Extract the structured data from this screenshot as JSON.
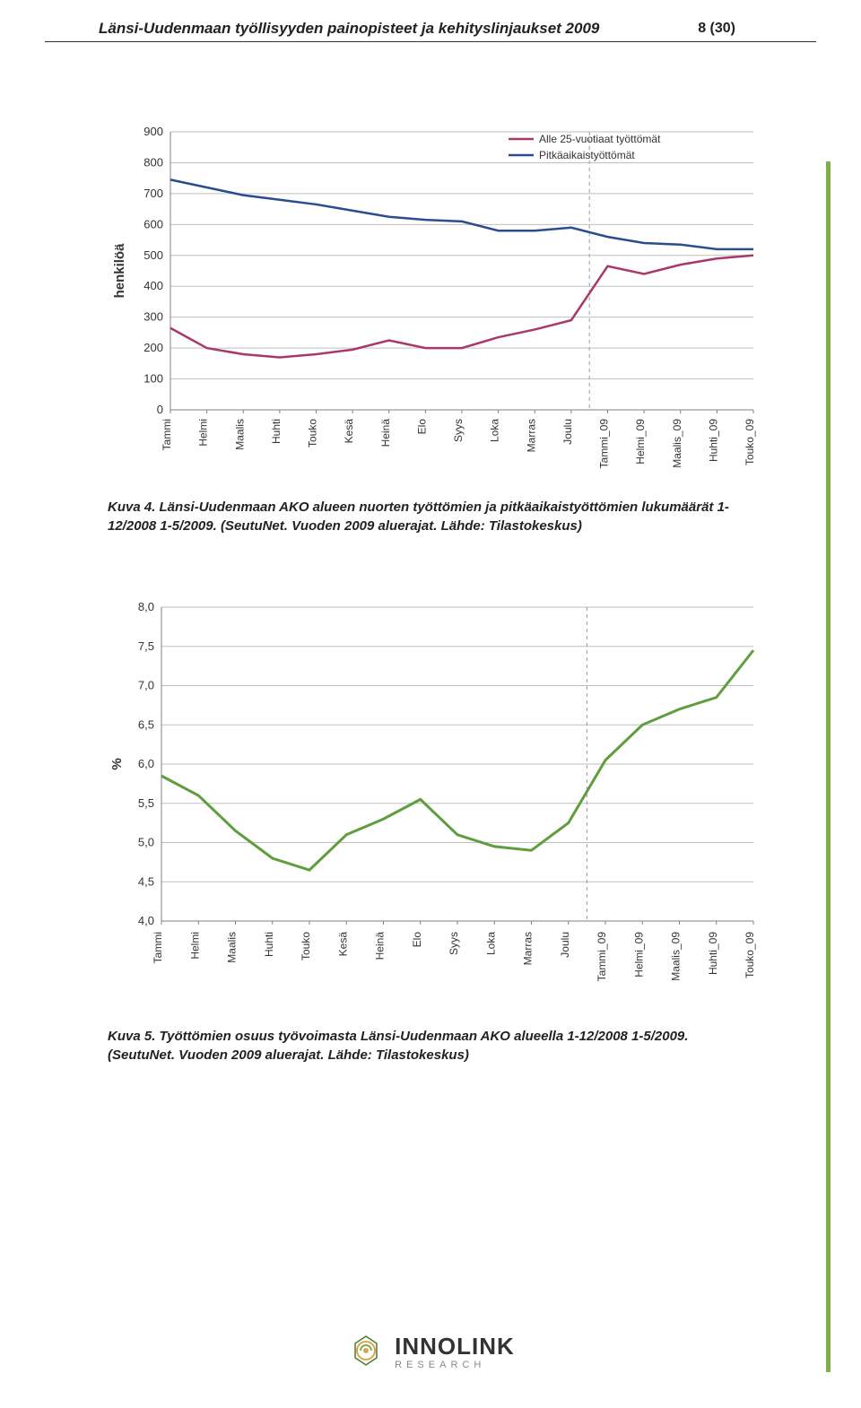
{
  "header": {
    "title": "Länsi-Uudenmaan työllisyyden painopisteet ja kehityslinjaukset 2009",
    "page": "8 (30)"
  },
  "chart1": {
    "type": "line",
    "ylabel": "henkilöä",
    "ylim": [
      0,
      900
    ],
    "ytick_step": 100,
    "yticks": [
      0,
      100,
      200,
      300,
      400,
      500,
      600,
      700,
      800,
      900
    ],
    "categories": [
      "Tammi",
      "Helmi",
      "Maalis",
      "Huhti",
      "Touko",
      "Kesä",
      "Heinä",
      "Elo",
      "Syys",
      "Loka",
      "Marras",
      "Joulu",
      "Tammi_09",
      "Helmi_09",
      "Maalis_09",
      "Huhti_09",
      "Touko_09"
    ],
    "divider_after_index": 11,
    "legend": [
      {
        "label": "Alle 25-vuotiaat työttömät",
        "color": "#a8396a"
      },
      {
        "label": "Pitkäaikaistyöttömät",
        "color": "#2a4d8e"
      }
    ],
    "series": [
      {
        "name": "Alle 25-vuotiaat työttömät",
        "color": "#a8396a",
        "values": [
          265,
          200,
          180,
          170,
          180,
          195,
          225,
          200,
          200,
          235,
          260,
          290,
          465,
          440,
          470,
          490,
          500
        ]
      },
      {
        "name": "Pitkäaikaistyöttömät",
        "color": "#2a4d8e",
        "values": [
          745,
          720,
          695,
          680,
          665,
          645,
          625,
          615,
          610,
          580,
          580,
          590,
          560,
          540,
          535,
          520,
          520
        ]
      }
    ],
    "grid_color": "#bfbfbf",
    "background_color": "#ffffff",
    "line_width": 2.5
  },
  "caption1": "Kuva 4. Länsi-Uudenmaan AKO alueen nuorten työttömien ja pitkäaikaistyöttömien lukumäärät 1-12/2008 1-5/2009. (SeutuNet. Vuoden 2009 aluerajat. Lähde: Tilastokeskus)",
  "chart2": {
    "type": "line",
    "ylabel": "%",
    "ylim": [
      4.0,
      8.0
    ],
    "ytick_step": 0.5,
    "yticks": [
      "4,0",
      "4,5",
      "5,0",
      "5,5",
      "6,0",
      "6,5",
      "7,0",
      "7,5",
      "8,0"
    ],
    "ytick_values": [
      4.0,
      4.5,
      5.0,
      5.5,
      6.0,
      6.5,
      7.0,
      7.5,
      8.0
    ],
    "categories": [
      "Tammi",
      "Helmi",
      "Maalis",
      "Huhti",
      "Touko",
      "Kesä",
      "Heinä",
      "Elo",
      "Syys",
      "Loka",
      "Marras",
      "Joulu",
      "Tammi_09",
      "Helmi_09",
      "Maalis_09",
      "Huhti_09",
      "Touko_09"
    ],
    "divider_after_index": 11,
    "series": [
      {
        "name": "Työttömien osuus",
        "color": "#5f9e3e",
        "values": [
          5.85,
          5.6,
          5.15,
          4.8,
          4.65,
          5.1,
          5.3,
          5.55,
          5.1,
          4.95,
          4.9,
          5.25,
          6.05,
          6.5,
          6.7,
          6.85,
          7.45
        ]
      }
    ],
    "grid_color": "#bfbfbf",
    "background_color": "#ffffff",
    "line_width": 3
  },
  "caption2": "Kuva 5. Työttömien osuus työvoimasta Länsi-Uudenmaan AKO alueella 1-12/2008 1-5/2009. (SeutuNet. Vuoden 2009 aluerajat. Lähde: Tilastokeskus)",
  "footer": {
    "logo_name": "INNOLINK",
    "logo_sub": "RESEARCH"
  }
}
